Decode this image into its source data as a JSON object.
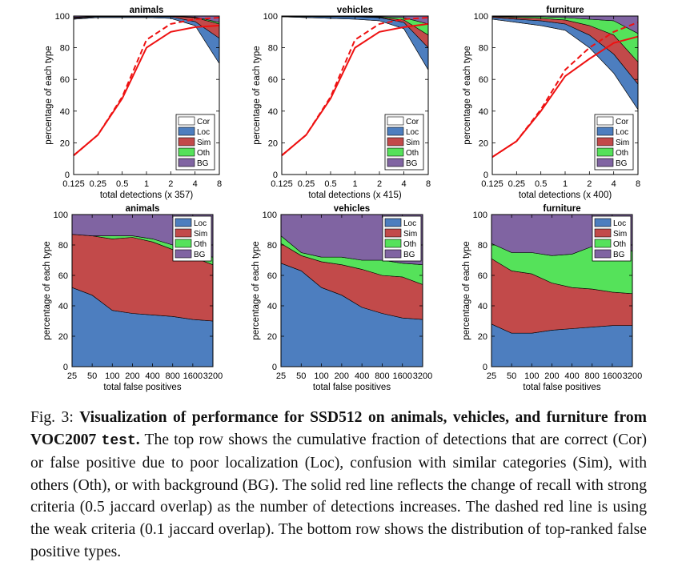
{
  "colors": {
    "Cor": "#ffffff",
    "Loc": "#4d7ebf",
    "Sim": "#c24a4a",
    "Oth": "#55e25a",
    "BG": "#8064a2",
    "recall": "#ee1111"
  },
  "chart_data": [
    {
      "type": "area",
      "panel": "top",
      "title": "animals",
      "xlabel": "total detections (x 357)",
      "ylabel": "percentage of each type",
      "xticks": [
        "0.125",
        "0.25",
        "0.5",
        "1",
        "2",
        "4",
        "8"
      ],
      "yticks": [
        "0",
        "20",
        "40",
        "60",
        "80",
        "100"
      ],
      "ylim": [
        0,
        100
      ],
      "legend": [
        "Cor",
        "Loc",
        "Sim",
        "Oth",
        "BG"
      ],
      "legend_placement": "lower-right",
      "x": [
        0.125,
        0.25,
        0.5,
        1,
        2,
        4,
        8
      ],
      "series": [
        {
          "name": "Cor",
          "values": [
            98,
            99,
            99,
            99,
            98.5,
            94,
            70
          ]
        },
        {
          "name": "Loc",
          "values": [
            0.5,
            0.5,
            0.5,
            0.5,
            1,
            2.5,
            16
          ]
        },
        {
          "name": "Sim",
          "values": [
            0.5,
            0.3,
            0.3,
            0.3,
            0.3,
            2.5,
            9
          ]
        },
        {
          "name": "Oth",
          "values": [
            0.2,
            0.1,
            0.1,
            0.1,
            0.1,
            0.3,
            1
          ]
        },
        {
          "name": "BG",
          "values": [
            0.8,
            0.1,
            0.1,
            0.1,
            0.1,
            0.7,
            4
          ]
        }
      ],
      "recall_strong": [
        12,
        25,
        48,
        80,
        90,
        93,
        94
      ],
      "recall_weak": [
        12,
        25,
        49,
        85,
        95,
        98,
        99
      ]
    },
    {
      "type": "area",
      "panel": "top",
      "title": "vehicles",
      "xlabel": "total detections (x 415)",
      "ylabel": "percentage of each type",
      "xticks": [
        "0.125",
        "0.25",
        "0.5",
        "1",
        "2",
        "4",
        "8"
      ],
      "yticks": [
        "0",
        "20",
        "40",
        "60",
        "80",
        "100"
      ],
      "ylim": [
        0,
        100
      ],
      "legend": [
        "Cor",
        "Loc",
        "Sim",
        "Oth",
        "BG"
      ],
      "legend_placement": "lower-right",
      "x": [
        0.125,
        0.25,
        0.5,
        1,
        2,
        4,
        8
      ],
      "series": [
        {
          "name": "Cor",
          "values": [
            99.5,
            99,
            98.5,
            98,
            97,
            92,
            66
          ]
        },
        {
          "name": "Loc",
          "values": [
            0.2,
            0.5,
            1,
            1.5,
            2,
            4,
            14
          ]
        },
        {
          "name": "Sim",
          "values": [
            0.1,
            0.2,
            0.2,
            0.2,
            0.3,
            1.5,
            8
          ]
        },
        {
          "name": "Oth",
          "values": [
            0.1,
            0.1,
            0.1,
            0.1,
            0.3,
            1.5,
            7
          ]
        },
        {
          "name": "BG",
          "values": [
            0.1,
            0.2,
            0.2,
            0.2,
            0.4,
            1,
            5
          ]
        }
      ],
      "recall_strong": [
        12,
        25,
        48,
        80,
        90,
        93,
        95
      ],
      "recall_weak": [
        12,
        25,
        49,
        85,
        95,
        98,
        99
      ]
    },
    {
      "type": "area",
      "panel": "top",
      "title": "furniture",
      "xlabel": "total detections (x 400)",
      "ylabel": "percentage of each type",
      "xticks": [
        "0.125",
        "0.25",
        "0.5",
        "1",
        "2",
        "4",
        "8"
      ],
      "yticks": [
        "0",
        "20",
        "40",
        "60",
        "80",
        "100"
      ],
      "ylim": [
        0,
        100
      ],
      "legend": [
        "Cor",
        "Loc",
        "Sim",
        "Oth",
        "BG"
      ],
      "legend_placement": "lower-right",
      "x": [
        0.125,
        0.25,
        0.5,
        1,
        2,
        4,
        8
      ],
      "series": [
        {
          "name": "Cor",
          "values": [
            98,
            96,
            94,
            91,
            80,
            64,
            41
          ]
        },
        {
          "name": "Loc",
          "values": [
            1,
            2,
            3,
            4,
            8,
            12,
            16
          ]
        },
        {
          "name": "Sim",
          "values": [
            0.5,
            1,
            1.5,
            2.5,
            6,
            12,
            14
          ]
        },
        {
          "name": "Oth",
          "values": [
            0.3,
            0.5,
            1,
            1.5,
            4,
            9,
            18
          ]
        },
        {
          "name": "BG",
          "values": [
            0.2,
            0.5,
            0.5,
            1,
            2,
            3,
            11
          ]
        }
      ],
      "recall_strong": [
        11,
        21,
        40,
        62,
        73,
        83,
        87
      ],
      "recall_weak": [
        11,
        21,
        41,
        66,
        80,
        90,
        96
      ]
    },
    {
      "type": "area",
      "panel": "bottom",
      "title": "animals",
      "xlabel": "total false positives",
      "ylabel": "percentage of each type",
      "xticks": [
        "25",
        "50",
        "100",
        "200",
        "400",
        "800",
        "1600",
        "3200"
      ],
      "yticks": [
        "0",
        "20",
        "40",
        "60",
        "80",
        "100"
      ],
      "ylim": [
        0,
        100
      ],
      "legend": [
        "Loc",
        "Sim",
        "Oth",
        "BG"
      ],
      "legend_placement": "top-right",
      "x": [
        25,
        50,
        100,
        200,
        400,
        800,
        1600,
        3200
      ],
      "series": [
        {
          "name": "Loc",
          "values": [
            52,
            47,
            37,
            35,
            34,
            33,
            31,
            30
          ]
        },
        {
          "name": "Sim",
          "values": [
            35,
            39,
            47,
            50,
            48,
            44,
            41,
            37
          ]
        },
        {
          "name": "Oth",
          "values": [
            0,
            0,
            2,
            1,
            2,
            3,
            3,
            5
          ]
        },
        {
          "name": "BG",
          "values": [
            13,
            14,
            14,
            14,
            16,
            20,
            25,
            28
          ]
        }
      ]
    },
    {
      "type": "area",
      "panel": "bottom",
      "title": "vehicles",
      "xlabel": "total false positives",
      "ylabel": "percentage of each type",
      "xticks": [
        "25",
        "50",
        "100",
        "200",
        "400",
        "800",
        "1600",
        "3200"
      ],
      "yticks": [
        "0",
        "20",
        "40",
        "60",
        "80",
        "100"
      ],
      "ylim": [
        0,
        100
      ],
      "legend": [
        "Loc",
        "Sim",
        "Oth",
        "BG"
      ],
      "legend_placement": "top-right",
      "x": [
        25,
        50,
        100,
        200,
        400,
        800,
        1600,
        3200
      ],
      "series": [
        {
          "name": "Loc",
          "values": [
            68,
            63,
            52,
            47,
            39,
            35,
            32,
            31
          ]
        },
        {
          "name": "Sim",
          "values": [
            13,
            10,
            17,
            20,
            25,
            25,
            27,
            23
          ]
        },
        {
          "name": "Oth",
          "values": [
            5,
            2,
            3,
            5,
            6,
            10,
            9,
            13
          ]
        },
        {
          "name": "BG",
          "values": [
            14,
            25,
            28,
            28,
            30,
            30,
            32,
            33
          ]
        }
      ]
    },
    {
      "type": "area",
      "panel": "bottom",
      "title": "furniture",
      "xlabel": "total false positives",
      "ylabel": "percentage of each type",
      "xticks": [
        "25",
        "50",
        "100",
        "200",
        "400",
        "800",
        "1600",
        "3200"
      ],
      "yticks": [
        "0",
        "20",
        "40",
        "60",
        "80",
        "100"
      ],
      "ylim": [
        0,
        100
      ],
      "legend": [
        "Loc",
        "Sim",
        "Oth",
        "BG"
      ],
      "legend_placement": "top-right",
      "x": [
        25,
        50,
        100,
        200,
        400,
        800,
        1600,
        3200
      ],
      "series": [
        {
          "name": "Loc",
          "values": [
            28,
            22,
            22,
            24,
            25,
            26,
            27,
            27
          ]
        },
        {
          "name": "Sim",
          "values": [
            43,
            41,
            39,
            31,
            27,
            25,
            22,
            21
          ]
        },
        {
          "name": "Oth",
          "values": [
            10,
            12,
            14,
            18,
            22,
            28,
            30,
            28
          ]
        },
        {
          "name": "BG",
          "values": [
            19,
            25,
            25,
            27,
            26,
            21,
            21,
            24
          ]
        }
      ]
    }
  ],
  "caption": {
    "fig_label": "Fig. 3: ",
    "bold_title": "Visualization of performance for SSD512 on animals, vehicles, and furniture from VOC2007 ",
    "bold_code": "test",
    "bold_end": ".",
    "body": " The top row shows the cumulative fraction of detections that are correct (Cor) or false positive due to poor localization (Loc), confusion with similar categories (Sim), with others (Oth), or with background (BG). The solid red line reflects the change of recall with strong criteria (0.5 jaccard overlap) as the number of detections increases. The dashed red line is using the weak criteria (0.1 jaccard overlap). The bottom row shows the distribution of top-ranked false positive types."
  }
}
